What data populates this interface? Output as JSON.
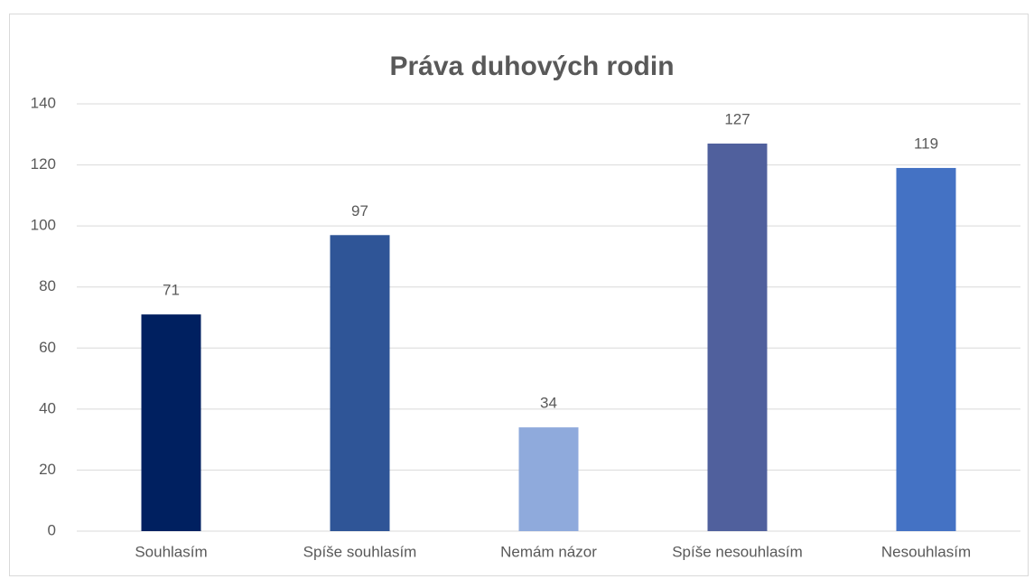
{
  "chart_data": {
    "type": "bar",
    "title": "Práva duhových rodin",
    "categories": [
      "Souhlasím",
      "Spíše souhlasím",
      "Nemám názor",
      "Spíše nesouhlasím",
      "Nesouhlasím"
    ],
    "values": [
      71,
      97,
      34,
      127,
      119
    ],
    "colors": [
      "#002060",
      "#2f5597",
      "#8faadc",
      "#50609d",
      "#4472c4"
    ],
    "ylim": [
      0,
      140
    ],
    "yticks": [
      0,
      20,
      40,
      60,
      80,
      100,
      120,
      140
    ],
    "grid": true
  }
}
